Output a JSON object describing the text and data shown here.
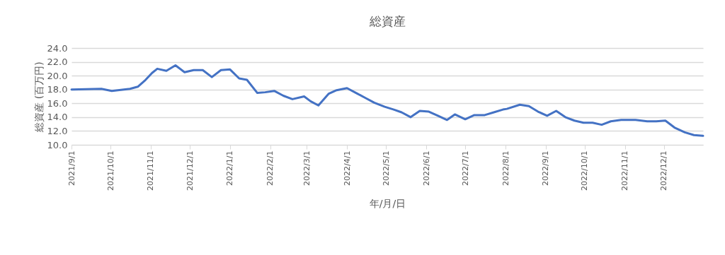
{
  "chart_data": {
    "type": "line",
    "title": "総資産",
    "xlabel": "年/月/日",
    "ylabel": "総資産 (百万円)",
    "x": [
      "2021-09-01",
      "2021-09-24",
      "2021-10-02",
      "2021-10-16",
      "2021-10-22",
      "2021-10-28",
      "2021-11-02",
      "2021-11-06",
      "2021-11-13",
      "2021-11-20",
      "2021-11-27",
      "2021-12-04",
      "2021-12-11",
      "2021-12-18",
      "2021-12-25",
      "2022-01-01",
      "2022-01-08",
      "2022-01-14",
      "2022-01-22",
      "2022-01-28",
      "2022-02-04",
      "2022-02-11",
      "2022-02-18",
      "2022-02-27",
      "2022-03-04",
      "2022-03-10",
      "2022-03-18",
      "2022-03-24",
      "2022-04-01",
      "2022-04-09",
      "2022-04-15",
      "2022-04-22",
      "2022-04-30",
      "2022-05-07",
      "2022-05-13",
      "2022-05-20",
      "2022-05-27",
      "2022-06-03",
      "2022-06-10",
      "2022-06-17",
      "2022-06-23",
      "2022-07-01",
      "2022-07-08",
      "2022-07-16",
      "2022-07-23",
      "2022-07-30",
      "2022-08-02",
      "2022-08-12",
      "2022-08-19",
      "2022-08-26",
      "2022-09-02",
      "2022-09-09",
      "2022-09-16",
      "2022-09-23",
      "2022-09-30",
      "2022-10-07",
      "2022-10-14",
      "2022-10-21",
      "2022-10-29",
      "2022-11-09",
      "2022-11-18",
      "2022-11-25",
      "2022-12-02",
      "2022-12-09",
      "2022-12-17",
      "2022-12-24",
      "2022-12-31"
    ],
    "series": [
      {
        "color": "#4472c4",
        "values": [
          18.0,
          18.1,
          17.8,
          18.1,
          18.4,
          19.4,
          20.4,
          21.0,
          20.7,
          21.5,
          20.5,
          20.8,
          20.8,
          19.8,
          20.8,
          20.9,
          19.6,
          19.4,
          17.5,
          17.6,
          17.8,
          17.1,
          16.6,
          17.0,
          16.3,
          15.7,
          17.4,
          17.9,
          18.2,
          17.4,
          16.8,
          16.1,
          15.5,
          15.1,
          14.7,
          14.0,
          14.9,
          14.8,
          14.2,
          13.6,
          14.4,
          13.7,
          14.3,
          14.3,
          14.7,
          15.1,
          15.2,
          15.8,
          15.6,
          14.8,
          14.2,
          14.9,
          14.0,
          13.5,
          13.2,
          13.2,
          12.9,
          13.4,
          13.6,
          13.6,
          13.4,
          13.4,
          13.5,
          12.5,
          11.8,
          11.4,
          11.3
        ]
      }
    ],
    "xlim": [
      "2021-09-01",
      "2022-12-31"
    ],
    "xticks": [
      {
        "value": "2021-09-01",
        "label": "2021/9/1"
      },
      {
        "value": "2021-10-01",
        "label": "2021/10/1"
      },
      {
        "value": "2021-11-01",
        "label": "2021/11/1"
      },
      {
        "value": "2021-12-01",
        "label": "2021/12/1"
      },
      {
        "value": "2022-01-01",
        "label": "2022/1/1"
      },
      {
        "value": "2022-02-01",
        "label": "2022/2/1"
      },
      {
        "value": "2022-03-01",
        "label": "2022/3/1"
      },
      {
        "value": "2022-04-01",
        "label": "2022/4/1"
      },
      {
        "value": "2022-05-01",
        "label": "2022/5/1"
      },
      {
        "value": "2022-06-01",
        "label": "2022/6/1"
      },
      {
        "value": "2022-07-01",
        "label": "2022/7/1"
      },
      {
        "value": "2022-08-01",
        "label": "2022/8/1"
      },
      {
        "value": "2022-09-01",
        "label": "2022/9/1"
      },
      {
        "value": "2022-10-01",
        "label": "2022/10/1"
      },
      {
        "value": "2022-11-01",
        "label": "2022/11/1"
      },
      {
        "value": "2022-12-01",
        "label": "2022/12/1"
      }
    ],
    "ylim": [
      10,
      24
    ],
    "yticks": [
      {
        "value": 10,
        "label": "10.0"
      },
      {
        "value": 12,
        "label": "12.0"
      },
      {
        "value": 14,
        "label": "14.0"
      },
      {
        "value": 16,
        "label": "16.0"
      },
      {
        "value": 18,
        "label": "18.0"
      },
      {
        "value": 20,
        "label": "20.0"
      },
      {
        "value": 22,
        "label": "22.0"
      },
      {
        "value": 24,
        "label": "24.0"
      }
    ],
    "grid": "y",
    "marker": "none",
    "line_style": "solid"
  }
}
